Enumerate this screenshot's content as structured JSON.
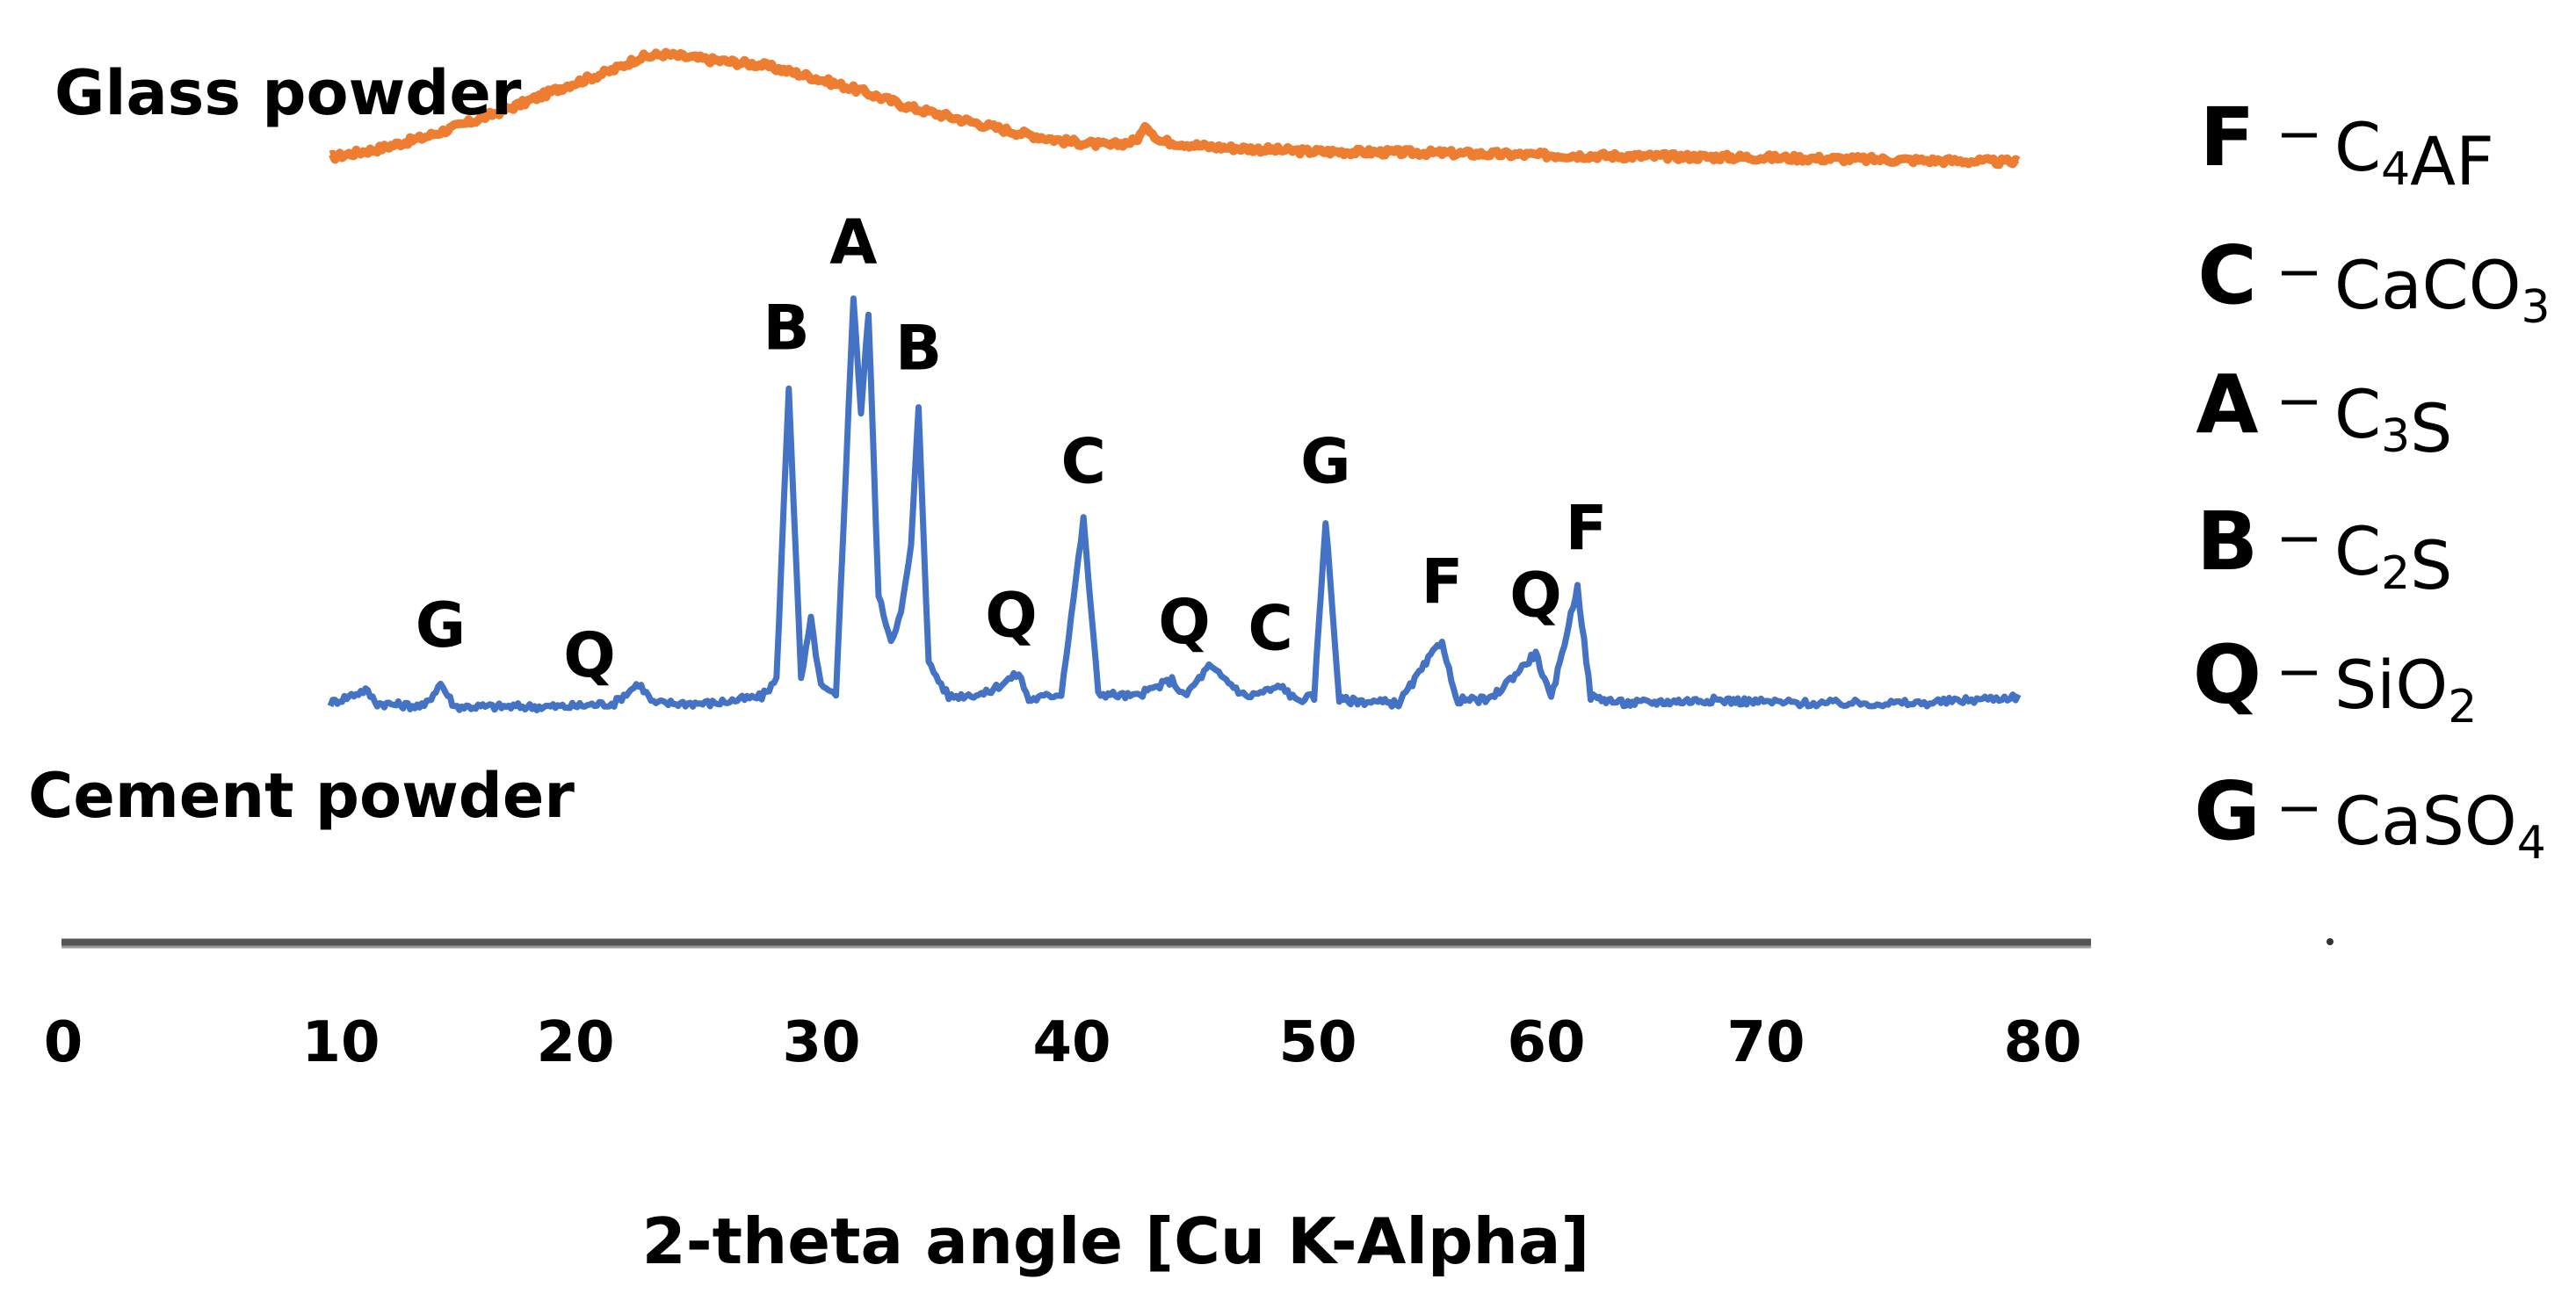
{
  "chart_data": {
    "type": "line",
    "title": "",
    "xlabel": "2-theta angle [Cu K-Alpha]",
    "ylabel": "",
    "xlim": [
      0,
      80
    ],
    "x_ticks": [
      "0",
      "10",
      "20",
      "30",
      "40",
      "50",
      "60",
      "70",
      "80"
    ],
    "grid": false,
    "series": [
      {
        "name": "Glass powder",
        "color": "#ed7d31",
        "role": "top-trace",
        "points": [
          [
            10,
            0.08
          ],
          [
            12,
            0.15
          ],
          [
            14,
            0.25
          ],
          [
            16,
            0.38
          ],
          [
            18,
            0.52
          ],
          [
            20,
            0.68
          ],
          [
            22,
            0.82
          ],
          [
            23,
            0.92
          ],
          [
            24,
            0.95
          ],
          [
            26,
            0.9
          ],
          [
            28,
            0.86
          ],
          [
            30,
            0.76
          ],
          [
            32,
            0.64
          ],
          [
            34,
            0.5
          ],
          [
            36,
            0.4
          ],
          [
            38,
            0.3
          ],
          [
            40,
            0.22
          ],
          [
            42,
            0.18
          ],
          [
            43,
            0.22
          ],
          [
            43.5,
            0.34
          ],
          [
            44,
            0.22
          ],
          [
            46,
            0.17
          ],
          [
            50,
            0.13
          ],
          [
            55,
            0.12
          ],
          [
            60,
            0.1
          ],
          [
            65,
            0.09
          ],
          [
            70,
            0.08
          ],
          [
            75,
            0.06
          ],
          [
            79.5,
            0.04
          ]
        ]
      },
      {
        "name": "Cement powder",
        "color": "#4472c4",
        "role": "bottom-trace",
        "points": [
          [
            10,
            0.03
          ],
          [
            11.5,
            0.07
          ],
          [
            12,
            0.03
          ],
          [
            14,
            0.02
          ],
          [
            14.7,
            0.09
          ],
          [
            15.3,
            0.02
          ],
          [
            18,
            0.02
          ],
          [
            20,
            0.02
          ],
          [
            22,
            0.03
          ],
          [
            23,
            0.09
          ],
          [
            23.6,
            0.03
          ],
          [
            26,
            0.03
          ],
          [
            28,
            0.05
          ],
          [
            28.6,
            0.1
          ],
          [
            29.1,
            0.98
          ],
          [
            29.6,
            0.1
          ],
          [
            30,
            0.28
          ],
          [
            30.4,
            0.08
          ],
          [
            31,
            0.05
          ],
          [
            31.7,
            1.25
          ],
          [
            32.0,
            0.9
          ],
          [
            32.3,
            1.2
          ],
          [
            32.7,
            0.35
          ],
          [
            33.2,
            0.22
          ],
          [
            33.6,
            0.3
          ],
          [
            34,
            0.5
          ],
          [
            34.3,
            0.92
          ],
          [
            34.7,
            0.15
          ],
          [
            35.5,
            0.05
          ],
          [
            37,
            0.06
          ],
          [
            38.3,
            0.12
          ],
          [
            38.7,
            0.04
          ],
          [
            40,
            0.06
          ],
          [
            40.9,
            0.58
          ],
          [
            41.5,
            0.06
          ],
          [
            43,
            0.05
          ],
          [
            44.5,
            0.1
          ],
          [
            45,
            0.05
          ],
          [
            46,
            0.14
          ],
          [
            46.7,
            0.1
          ],
          [
            47.5,
            0.05
          ],
          [
            49,
            0.08
          ],
          [
            49.5,
            0.04
          ],
          [
            50.3,
            0.05
          ],
          [
            50.8,
            0.58
          ],
          [
            51.4,
            0.04
          ],
          [
            54,
            0.03
          ],
          [
            55.9,
            0.22
          ],
          [
            56.5,
            0.04
          ],
          [
            58,
            0.04
          ],
          [
            60,
            0.18
          ],
          [
            60.7,
            0.04
          ],
          [
            61.9,
            0.38
          ],
          [
            62.5,
            0.05
          ],
          [
            64,
            0.03
          ],
          [
            68,
            0.04
          ],
          [
            72,
            0.03
          ],
          [
            76,
            0.03
          ],
          [
            79.5,
            0.05
          ]
        ]
      }
    ],
    "peak_annotations": [
      {
        "label": "G",
        "x": 14.7
      },
      {
        "label": "Q",
        "x": 21.0
      },
      {
        "label": "B",
        "x": 29.0
      },
      {
        "label": "A",
        "x": 31.7
      },
      {
        "label": "B",
        "x": 34.3
      },
      {
        "label": "Q",
        "x": 38.0
      },
      {
        "label": "C",
        "x": 40.9
      },
      {
        "label": "Q",
        "x": 45.0
      },
      {
        "label": "C",
        "x": 48.5
      },
      {
        "label": "G",
        "x": 50.8
      },
      {
        "label": "F",
        "x": 55.9
      },
      {
        "label": "Q",
        "x": 60.0
      },
      {
        "label": "F",
        "x": 62.3
      }
    ],
    "legend": {
      "placement": "right",
      "entries": [
        {
          "letter": "F",
          "formula": "C4AF"
        },
        {
          "letter": "C",
          "formula": "CaCO3"
        },
        {
          "letter": "A",
          "formula": "C3S"
        },
        {
          "letter": "B",
          "formula": "C2S"
        },
        {
          "letter": "Q",
          "formula": "SiO2"
        },
        {
          "letter": "G",
          "formula": "CaSO4"
        }
      ]
    }
  }
}
